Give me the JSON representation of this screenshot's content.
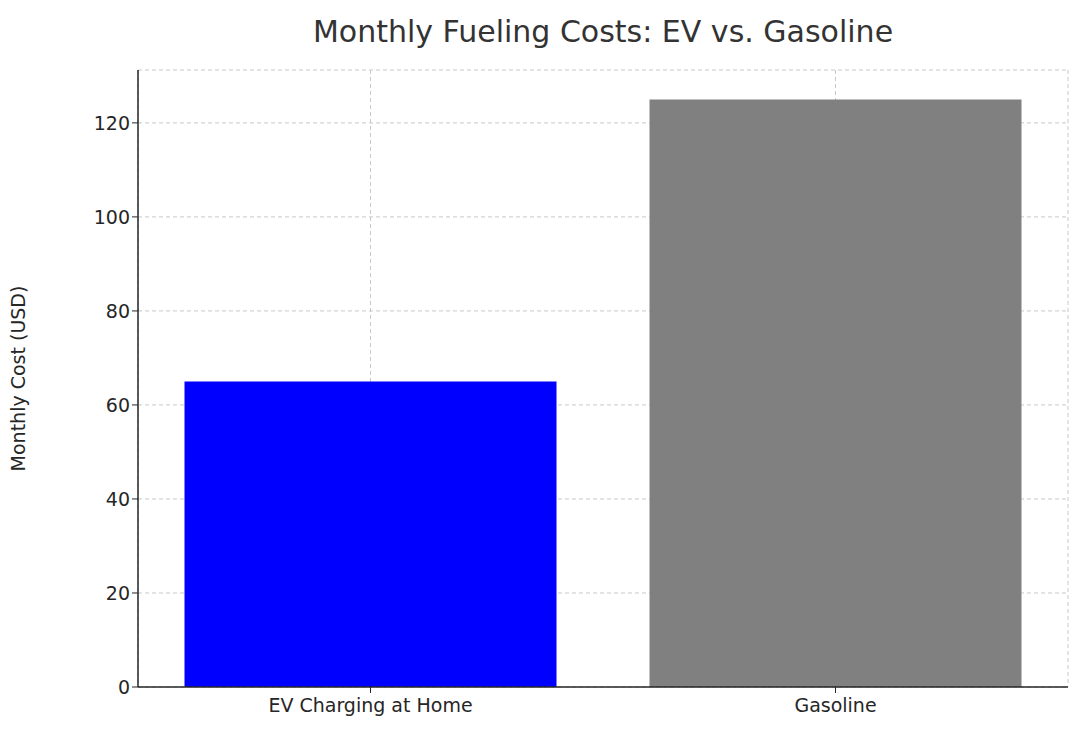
{
  "chart_data": {
    "type": "bar",
    "title": "Monthly Fueling Costs: EV vs. Gasoline",
    "y_label": "Monthly Cost (USD)",
    "categories": [
      "EV Charging at Home",
      "Gasoline"
    ],
    "values": [
      65,
      125
    ],
    "colors": [
      "#0000ff",
      "#808080"
    ],
    "ylim": [
      0,
      131.25
    ],
    "yticks": [
      0,
      20,
      40,
      60,
      80,
      100,
      120
    ],
    "grid": true
  }
}
